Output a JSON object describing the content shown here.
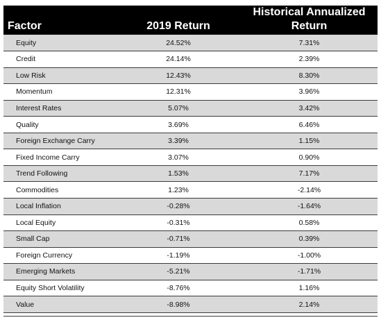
{
  "table": {
    "headers": {
      "factor": "Factor",
      "return_2019": "2019 Return",
      "historical_line1": "Historical Annualized",
      "historical_line2": "Return"
    },
    "rows": [
      {
        "factor": "Equity",
        "return_2019": "24.52%",
        "historical": "7.31%"
      },
      {
        "factor": "Credit",
        "return_2019": "24.14%",
        "historical": "2.39%"
      },
      {
        "factor": "Low Risk",
        "return_2019": "12.43%",
        "historical": "8.30%"
      },
      {
        "factor": "Momentum",
        "return_2019": "12.31%",
        "historical": "3.96%"
      },
      {
        "factor": "Interest Rates",
        "return_2019": "5.07%",
        "historical": "3.42%"
      },
      {
        "factor": "Quality",
        "return_2019": "3.69%",
        "historical": "6.46%"
      },
      {
        "factor": "Foreign Exchange Carry",
        "return_2019": "3.39%",
        "historical": "1.15%"
      },
      {
        "factor": "Fixed Income Carry",
        "return_2019": "3.07%",
        "historical": "0.90%"
      },
      {
        "factor": "Trend Following",
        "return_2019": "1.53%",
        "historical": "7.17%"
      },
      {
        "factor": "Commodities",
        "return_2019": "1.23%",
        "historical": "-2.14%"
      },
      {
        "factor": "Local Inflation",
        "return_2019": "-0.28%",
        "historical": "-1.64%"
      },
      {
        "factor": "Local Equity",
        "return_2019": "-0.31%",
        "historical": "0.58%"
      },
      {
        "factor": "Small Cap",
        "return_2019": "-0.71%",
        "historical": "0.39%"
      },
      {
        "factor": "Foreign Currency",
        "return_2019": "-1.19%",
        "historical": "-1.00%"
      },
      {
        "factor": "Emerging Markets",
        "return_2019": "-5.21%",
        "historical": "-1.71%"
      },
      {
        "factor": "Equity Short Volatility",
        "return_2019": "-8.76%",
        "historical": "1.16%"
      },
      {
        "factor": "Value",
        "return_2019": "-8.98%",
        "historical": "2.14%"
      }
    ]
  },
  "colors": {
    "header_bg": "#000000",
    "header_text": "#ffffff",
    "shaded_row": "#d9d9d9",
    "plain_row": "#ffffff"
  }
}
